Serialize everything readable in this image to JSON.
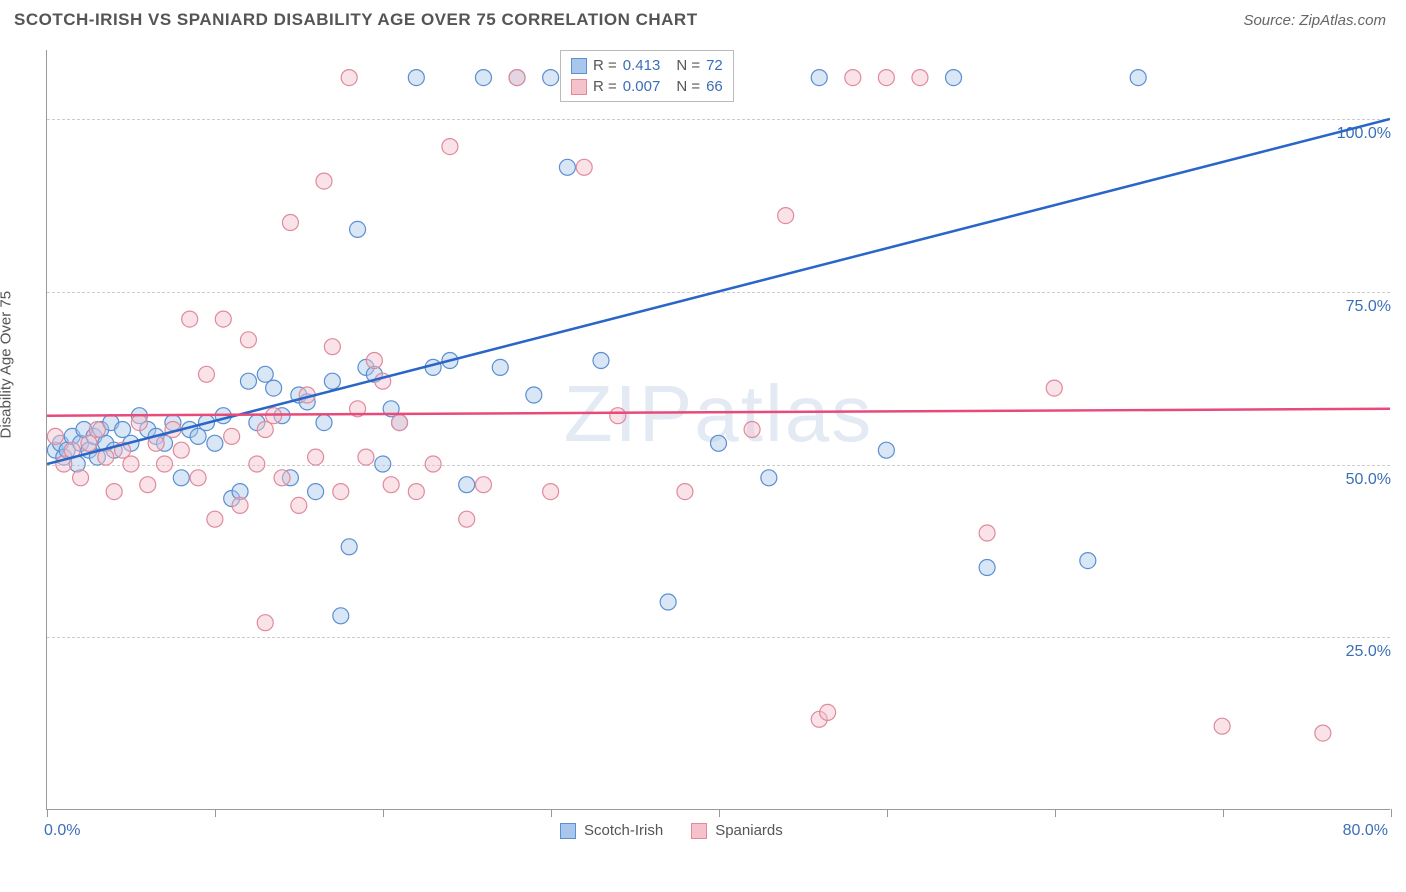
{
  "header": {
    "title": "SCOTCH-IRISH VS SPANIARD DISABILITY AGE OVER 75 CORRELATION CHART",
    "source": "Source: ZipAtlas.com"
  },
  "watermark": "ZIPatlas",
  "chart": {
    "type": "scatter",
    "ylabel": "Disability Age Over 75",
    "xlim": [
      0,
      80
    ],
    "ylim": [
      0,
      110
    ],
    "xtick_positions": [
      0,
      10,
      20,
      30,
      40,
      50,
      60,
      70,
      80
    ],
    "xtick_labels": {
      "first": "0.0%",
      "last": "80.0%"
    },
    "ytick_positions": [
      25,
      50,
      75,
      100
    ],
    "ytick_labels": [
      "25.0%",
      "50.0%",
      "75.0%",
      "100.0%"
    ],
    "grid_color": "#cccccc",
    "axis_color": "#999999",
    "background_color": "#ffffff",
    "marker_radius": 8,
    "marker_opacity": 0.45,
    "series": [
      {
        "name": "Scotch-Irish",
        "color_fill": "#a9c7ec",
        "color_stroke": "#5b8fd1",
        "line_color": "#2a66c8",
        "line_width": 2.5,
        "r": 0.413,
        "n": 72,
        "regression": {
          "x1": 0,
          "y1": 50,
          "x2": 80,
          "y2": 100
        },
        "points": [
          [
            0.5,
            52
          ],
          [
            0.8,
            53
          ],
          [
            1,
            51
          ],
          [
            1.2,
            52
          ],
          [
            1.5,
            54
          ],
          [
            1.8,
            50
          ],
          [
            2,
            53
          ],
          [
            2.2,
            55
          ],
          [
            2.5,
            52
          ],
          [
            2.8,
            54
          ],
          [
            3,
            51
          ],
          [
            3.2,
            55
          ],
          [
            3.5,
            53
          ],
          [
            3.8,
            56
          ],
          [
            4,
            52
          ],
          [
            4.5,
            55
          ],
          [
            5,
            53
          ],
          [
            5.5,
            57
          ],
          [
            6,
            55
          ],
          [
            6.5,
            54
          ],
          [
            7,
            53
          ],
          [
            7.5,
            56
          ],
          [
            8,
            48
          ],
          [
            8.5,
            55
          ],
          [
            9,
            54
          ],
          [
            9.5,
            56
          ],
          [
            10,
            53
          ],
          [
            10.5,
            57
          ],
          [
            11,
            45
          ],
          [
            11.5,
            46
          ],
          [
            12,
            62
          ],
          [
            12.5,
            56
          ],
          [
            13,
            63
          ],
          [
            13.5,
            61
          ],
          [
            14,
            57
          ],
          [
            14.5,
            48
          ],
          [
            15,
            60
          ],
          [
            15.5,
            59
          ],
          [
            16,
            46
          ],
          [
            16.5,
            56
          ],
          [
            17,
            62
          ],
          [
            17.5,
            28
          ],
          [
            18,
            38
          ],
          [
            18.5,
            84
          ],
          [
            19,
            64
          ],
          [
            19.5,
            63
          ],
          [
            20,
            50
          ],
          [
            20.5,
            58
          ],
          [
            21,
            56
          ],
          [
            22,
            106
          ],
          [
            23,
            64
          ],
          [
            24,
            65
          ],
          [
            25,
            47
          ],
          [
            26,
            106
          ],
          [
            27,
            64
          ],
          [
            28,
            106
          ],
          [
            29,
            60
          ],
          [
            31,
            93
          ],
          [
            33,
            106
          ],
          [
            35,
            106
          ],
          [
            37,
            30
          ],
          [
            40,
            53
          ],
          [
            43,
            48
          ],
          [
            46,
            106
          ],
          [
            50,
            52
          ],
          [
            54,
            106
          ],
          [
            56,
            35
          ],
          [
            62,
            36
          ],
          [
            65,
            106
          ],
          [
            40,
            106
          ],
          [
            33,
            65
          ],
          [
            30,
            106
          ]
        ]
      },
      {
        "name": "Spaniards",
        "color_fill": "#f5c1cb",
        "color_stroke": "#e08a9b",
        "line_color": "#e84a7a",
        "line_width": 2.5,
        "r": 0.007,
        "n": 66,
        "regression": {
          "x1": 0,
          "y1": 57,
          "x2": 80,
          "y2": 58
        },
        "points": [
          [
            0.5,
            54
          ],
          [
            1,
            50
          ],
          [
            1.5,
            52
          ],
          [
            2,
            48
          ],
          [
            2.5,
            53
          ],
          [
            3,
            55
          ],
          [
            3.5,
            51
          ],
          [
            4,
            46
          ],
          [
            4.5,
            52
          ],
          [
            5,
            50
          ],
          [
            5.5,
            56
          ],
          [
            6,
            47
          ],
          [
            6.5,
            53
          ],
          [
            7,
            50
          ],
          [
            7.5,
            55
          ],
          [
            8,
            52
          ],
          [
            8.5,
            71
          ],
          [
            9,
            48
          ],
          [
            9.5,
            63
          ],
          [
            10,
            42
          ],
          [
            10.5,
            71
          ],
          [
            11,
            54
          ],
          [
            11.5,
            44
          ],
          [
            12,
            68
          ],
          [
            12.5,
            50
          ],
          [
            13,
            55
          ],
          [
            13.5,
            57
          ],
          [
            14,
            48
          ],
          [
            14.5,
            85
          ],
          [
            15,
            44
          ],
          [
            15.5,
            60
          ],
          [
            16,
            51
          ],
          [
            16.5,
            91
          ],
          [
            17,
            67
          ],
          [
            17.5,
            46
          ],
          [
            18,
            106
          ],
          [
            18.5,
            58
          ],
          [
            19,
            51
          ],
          [
            19.5,
            65
          ],
          [
            20,
            62
          ],
          [
            20.5,
            47
          ],
          [
            21,
            56
          ],
          [
            22,
            46
          ],
          [
            23,
            50
          ],
          [
            24,
            96
          ],
          [
            25,
            42
          ],
          [
            26,
            47
          ],
          [
            28,
            106
          ],
          [
            30,
            46
          ],
          [
            32,
            93
          ],
          [
            34,
            57
          ],
          [
            36,
            106
          ],
          [
            38,
            46
          ],
          [
            40,
            106
          ],
          [
            42,
            55
          ],
          [
            44,
            86
          ],
          [
            46,
            13
          ],
          [
            46.5,
            14
          ],
          [
            48,
            106
          ],
          [
            50,
            106
          ],
          [
            52,
            106
          ],
          [
            56,
            40
          ],
          [
            60,
            61
          ],
          [
            70,
            12
          ],
          [
            76,
            11
          ],
          [
            13,
            27
          ]
        ]
      }
    ],
    "legend_bottom": [
      {
        "label": "Scotch-Irish",
        "fill": "#a9c7ec",
        "stroke": "#5b8fd1"
      },
      {
        "label": "Spaniards",
        "fill": "#f5c1cb",
        "stroke": "#e08a9b"
      }
    ]
  }
}
